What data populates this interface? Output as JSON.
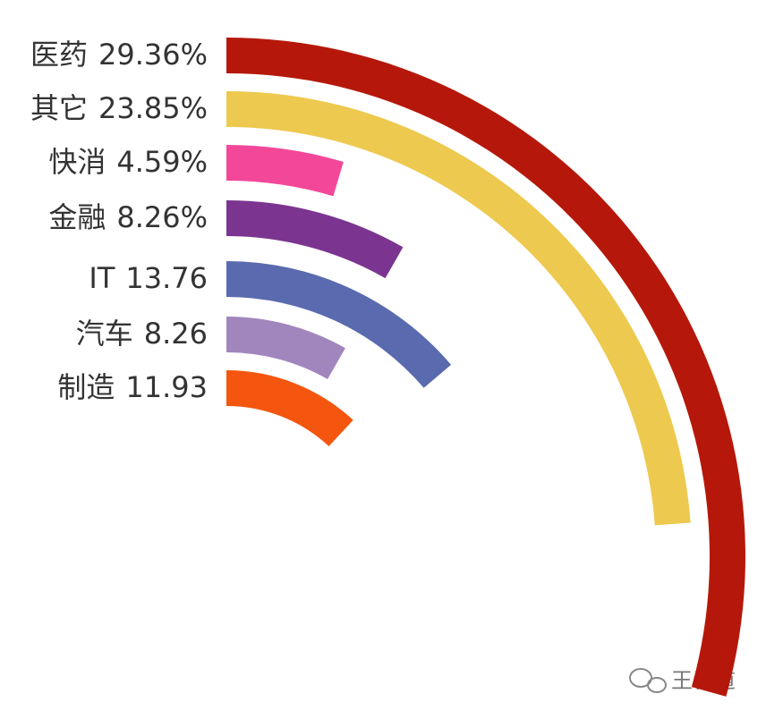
{
  "chart_data": {
    "type": "radial-bar",
    "categories": [
      "医药",
      "其它",
      "快消",
      "金融",
      "IT",
      "汽车",
      "制造"
    ],
    "values": [
      29.36,
      23.85,
      4.59,
      8.26,
      13.76,
      8.26,
      11.93
    ],
    "value_labels": [
      "29.36%",
      "23.85%",
      "4.59%",
      "8.26%",
      "13.76",
      "8.26",
      "11.93"
    ],
    "colors": [
      "#b5180a",
      "#eec94f",
      "#f3489a",
      "#7b3590",
      "#5a6aae",
      "#a186bd",
      "#f4560f"
    ],
    "watermark": "王青道"
  }
}
